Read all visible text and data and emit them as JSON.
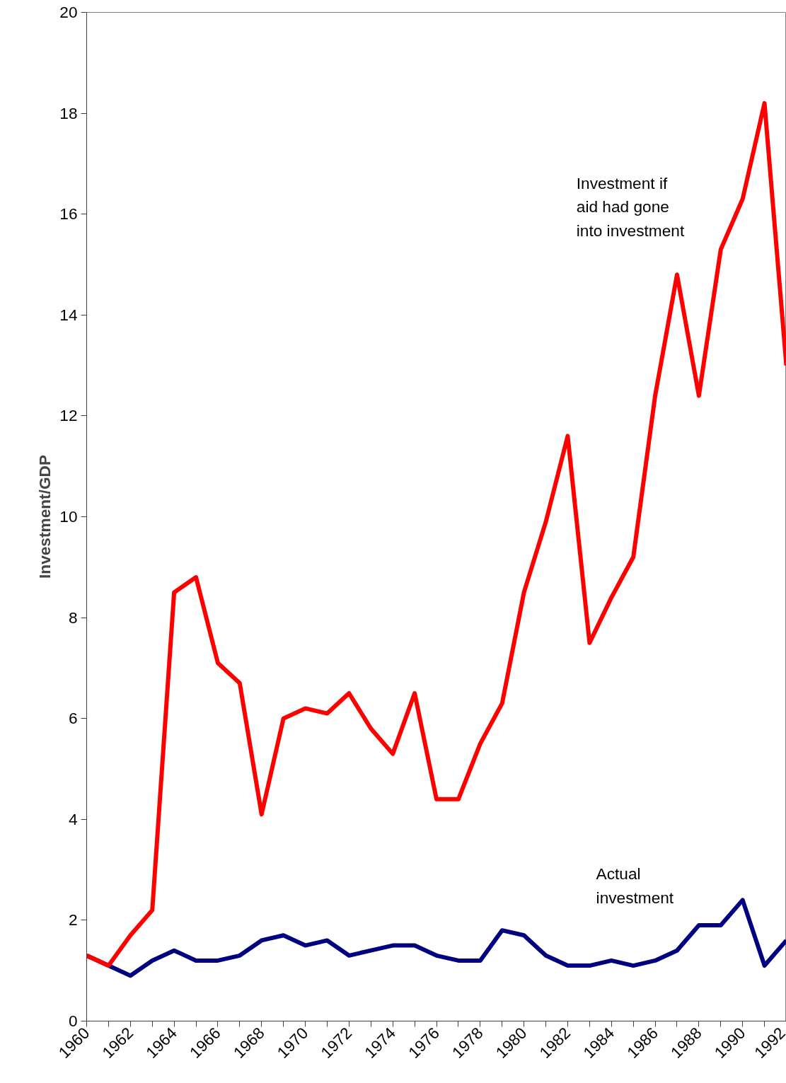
{
  "chart_data": {
    "type": "line",
    "ylabel": "Investment/GDP",
    "x": [
      1960,
      1961,
      1962,
      1963,
      1964,
      1965,
      1966,
      1967,
      1968,
      1969,
      1970,
      1971,
      1972,
      1973,
      1974,
      1975,
      1976,
      1977,
      1978,
      1979,
      1980,
      1981,
      1982,
      1983,
      1984,
      1985,
      1986,
      1987,
      1988,
      1989,
      1990,
      1991,
      1992
    ],
    "series": [
      {
        "name": "Investment if aid had gone into investment",
        "color": "#ff0000",
        "values": [
          1.3,
          1.1,
          1.7,
          2.2,
          8.5,
          8.8,
          7.1,
          6.7,
          4.1,
          6.0,
          6.2,
          6.1,
          6.5,
          5.8,
          5.3,
          6.5,
          4.4,
          4.4,
          5.5,
          6.3,
          8.5,
          9.9,
          11.6,
          7.5,
          8.4,
          9.2,
          12.4,
          14.8,
          12.4,
          15.3,
          16.3,
          18.2,
          13.0
        ]
      },
      {
        "name": "Actual investment",
        "color": "#000080",
        "values": [
          1.3,
          1.1,
          0.9,
          1.2,
          1.4,
          1.2,
          1.2,
          1.3,
          1.6,
          1.7,
          1.5,
          1.6,
          1.3,
          1.4,
          1.5,
          1.5,
          1.3,
          1.2,
          1.2,
          1.8,
          1.7,
          1.3,
          1.1,
          1.1,
          1.2,
          1.1,
          1.2,
          1.4,
          1.9,
          1.9,
          2.4,
          1.1,
          1.6
        ]
      }
    ],
    "xlim": [
      1960,
      1992
    ],
    "xticks": [
      1960,
      {
        "value": 1961,
        "label": null
      },
      1962,
      {
        "value": 1963,
        "label": null
      },
      1964,
      {
        "value": 1965,
        "label": null
      },
      1966,
      {
        "value": 1967,
        "label": null
      },
      1968,
      {
        "value": 1969,
        "label": null
      },
      1970,
      {
        "value": 1971,
        "label": null
      },
      1972,
      {
        "value": 1973,
        "label": null
      },
      1974,
      {
        "value": 1975,
        "label": null
      },
      1976,
      {
        "value": 1977,
        "label": null
      },
      1978,
      {
        "value": 1979,
        "label": null
      },
      1980,
      {
        "value": 1981,
        "label": null
      },
      1982,
      {
        "value": 1983,
        "label": null
      },
      1984,
      {
        "value": 1985,
        "label": null
      },
      1986,
      {
        "value": 1987,
        "label": null
      },
      1988,
      {
        "value": 1989,
        "label": null
      },
      1990,
      {
        "value": 1991,
        "label": null
      },
      1992
    ],
    "ylim": [
      0,
      20
    ],
    "yticks": [
      0,
      2,
      4,
      6,
      8,
      10,
      12,
      14,
      16,
      18,
      20
    ],
    "grid": false,
    "legend": false,
    "marker": "none",
    "line_style": "solid"
  }
}
